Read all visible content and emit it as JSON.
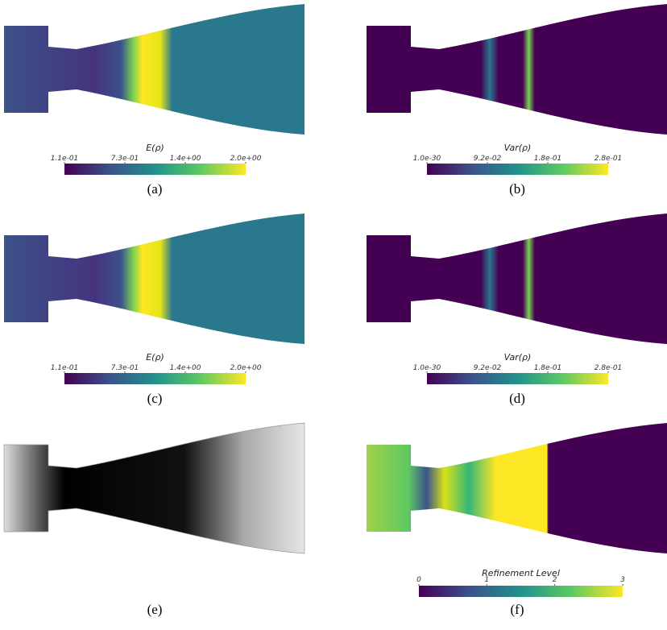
{
  "panels": [
    {
      "caption": "(a)",
      "colorbar": {
        "label": "E(ρ)",
        "ticks": [
          "1.1e-01",
          "7.3e-01",
          "1.4e+00",
          "2.0e+00"
        ]
      }
    },
    {
      "caption": "(b)",
      "colorbar": {
        "label": "Var(ρ)",
        "ticks": [
          "1.0e-30",
          "9.2e-02",
          "1.8e-01",
          "2.8e-01"
        ]
      }
    },
    {
      "caption": "(c)",
      "colorbar": {
        "label": "E(ρ)",
        "ticks": [
          "1.1e-01",
          "7.3e-01",
          "1.4e+00",
          "2.0e+00"
        ]
      }
    },
    {
      "caption": "(d)",
      "colorbar": {
        "label": "Var(ρ)",
        "ticks": [
          "1.0e-30",
          "9.2e-02",
          "1.8e-01",
          "2.8e-01"
        ]
      }
    },
    {
      "caption": "(e)"
    },
    {
      "caption": "(f)",
      "colorbar": {
        "label": "Refinement Level",
        "ticks": [
          "0",
          "1",
          "2",
          "3"
        ]
      }
    }
  ]
}
